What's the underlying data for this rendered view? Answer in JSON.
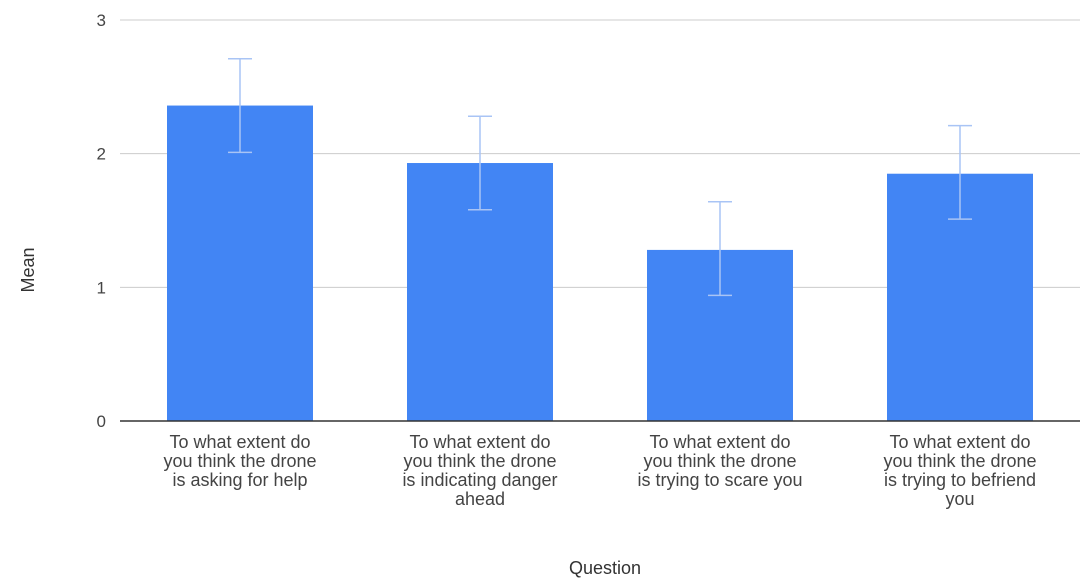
{
  "chart_data": {
    "type": "bar",
    "title": "",
    "xlabel": "Question",
    "ylabel": "Mean",
    "ylim": [
      0,
      3
    ],
    "yticks": [
      "0",
      "1",
      "2",
      "3"
    ],
    "categories": [
      [
        "To what extent do",
        "you think the drone",
        "is asking for help"
      ],
      [
        "To what extent do",
        "you think the drone",
        "is indicating danger",
        "ahead"
      ],
      [
        "To what extent do",
        "you think the drone",
        "is trying to scare you"
      ],
      [
        "To what extent do",
        "you think the drone",
        "is trying to befriend",
        "you"
      ]
    ],
    "values": [
      2.36,
      1.93,
      1.28,
      1.85
    ],
    "error_low": [
      2.01,
      1.58,
      0.94,
      1.51
    ],
    "error_high": [
      2.71,
      2.28,
      1.64,
      2.21
    ],
    "grid": true,
    "colors": {
      "bar": "#4285f4",
      "error_bar": "#a9c4f5",
      "grid": "#cccccc",
      "baseline": "#333333"
    }
  }
}
